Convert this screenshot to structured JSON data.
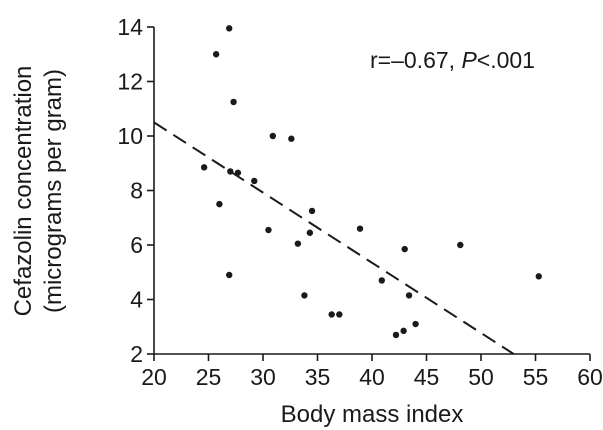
{
  "chart_data": {
    "type": "scatter",
    "title": "",
    "xlabel": "Body mass index",
    "ylabel_line1": "Cefazolin concentration",
    "ylabel_line2": "(micrograms per gram)",
    "xlim": [
      20,
      60
    ],
    "ylim": [
      2,
      14
    ],
    "xticks": [
      20,
      25,
      30,
      35,
      40,
      45,
      50,
      55,
      60
    ],
    "yticks": [
      2,
      4,
      6,
      8,
      10,
      12,
      14
    ],
    "grid": false,
    "annotation": {
      "prefix": "r=–0.67, ",
      "p_symbol": "P",
      "suffix": "<.001"
    },
    "point_color": "#1a1a1a",
    "trend_line": {
      "style": "dashed",
      "x": [
        20,
        53
      ],
      "y": [
        10.5,
        2.0
      ]
    },
    "series": [
      {
        "x": [
          26.9,
          25.7,
          27.3,
          24.6,
          26.0,
          27.0,
          27.7,
          29.2,
          30.5,
          30.9,
          32.6,
          26.9,
          33.2,
          34.3,
          34.5,
          33.8,
          36.3,
          37.0,
          38.9,
          40.9,
          42.2,
          42.9,
          43.0,
          43.4,
          44.0,
          48.1,
          55.3
        ],
        "y": [
          13.95,
          13.0,
          11.25,
          8.85,
          7.5,
          8.7,
          8.65,
          8.35,
          6.55,
          10.0,
          9.9,
          4.9,
          6.05,
          6.45,
          7.25,
          4.15,
          3.45,
          3.45,
          6.6,
          4.7,
          2.7,
          2.85,
          5.85,
          4.15,
          3.1,
          6.0,
          4.85
        ]
      }
    ]
  }
}
